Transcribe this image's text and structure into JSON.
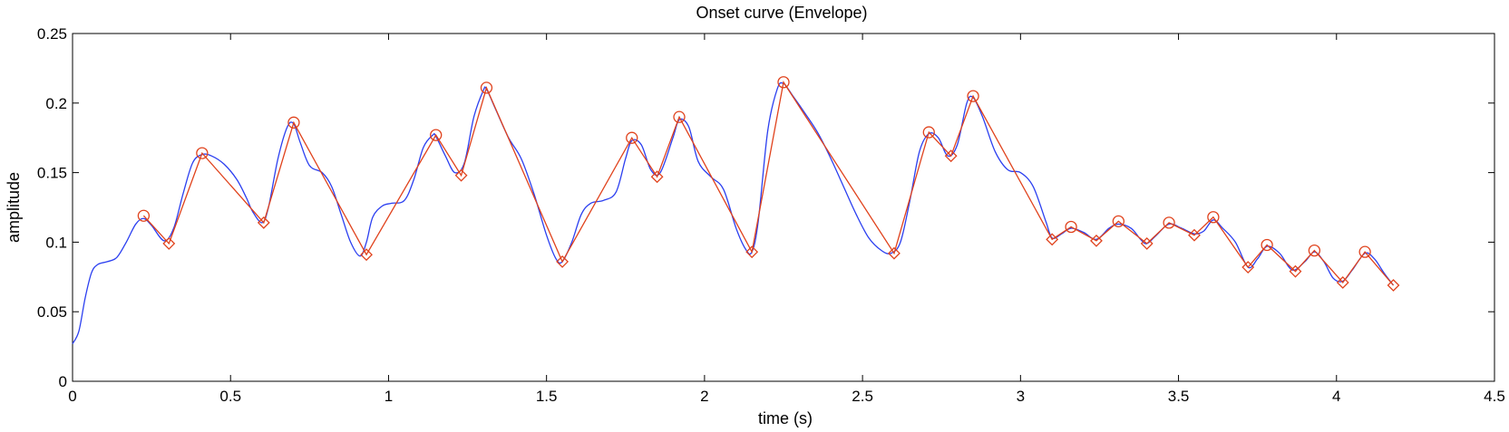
{
  "chart_data": {
    "type": "line",
    "title": "Onset curve (Envelope)",
    "xlabel": "time (s)",
    "ylabel": "amplitude",
    "xlim": [
      0,
      4.5
    ],
    "ylim": [
      0,
      0.25
    ],
    "xticks": [
      0,
      0.5,
      1,
      1.5,
      2,
      2.5,
      3,
      3.5,
      4,
      4.5
    ],
    "xtick_labels": [
      "0",
      "0.5",
      "1",
      "1.5",
      "2",
      "2.5",
      "3",
      "3.5",
      "4",
      "4.5"
    ],
    "yticks": [
      0,
      0.05,
      0.1,
      0.15,
      0.2,
      0.25
    ],
    "ytick_labels": [
      "0",
      "0.05",
      "0.1",
      "0.15",
      "0.2",
      "0.25"
    ],
    "grid": false,
    "colors": {
      "envelope": "#2b3ff0",
      "peaks": "#e0421c"
    },
    "series": [
      {
        "style": "line",
        "color": "#2b3ff0",
        "x": [
          0,
          0.02,
          0.04,
          0.06,
          0.08,
          0.11,
          0.14,
          0.17,
          0.2,
          0.225,
          0.25,
          0.29,
          0.32,
          0.35,
          0.38,
          0.41,
          0.44,
          0.48,
          0.52,
          0.55,
          0.57,
          0.6,
          0.62,
          0.65,
          0.68,
          0.7,
          0.72,
          0.75,
          0.79,
          0.82,
          0.85,
          0.88,
          0.91,
          0.93,
          0.95,
          0.98,
          1.01,
          1.05,
          1.08,
          1.11,
          1.14,
          1.15,
          1.18,
          1.21,
          1.24,
          1.27,
          1.3,
          1.31,
          1.34,
          1.38,
          1.42,
          1.46,
          1.5,
          1.53,
          1.55,
          1.58,
          1.61,
          1.64,
          1.68,
          1.72,
          1.75,
          1.77,
          1.8,
          1.83,
          1.86,
          1.9,
          1.92,
          1.95,
          1.98,
          2.02,
          2.06,
          2.1,
          2.13,
          2.15,
          2.17,
          2.2,
          2.23,
          2.25,
          2.28,
          2.32,
          2.36,
          2.4,
          2.44,
          2.48,
          2.52,
          2.56,
          2.59,
          2.62,
          2.65,
          2.68,
          2.71,
          2.74,
          2.77,
          2.8,
          2.83,
          2.85,
          2.88,
          2.92,
          2.96,
          3.0,
          3.04,
          3.08,
          3.1,
          3.13,
          3.16,
          3.2,
          3.24,
          3.28,
          3.31,
          3.35,
          3.38,
          3.4,
          3.43,
          3.47,
          3.51,
          3.55,
          3.58,
          3.61,
          3.64,
          3.68,
          3.72,
          3.75,
          3.78,
          3.82,
          3.86,
          3.9,
          3.93,
          3.96,
          3.99,
          4.02,
          4.05,
          4.09,
          4.12,
          4.15,
          4.18
        ],
        "y": [
          0.027,
          0.036,
          0.06,
          0.078,
          0.084,
          0.086,
          0.089,
          0.1,
          0.113,
          0.117,
          0.112,
          0.101,
          0.11,
          0.135,
          0.157,
          0.163,
          0.162,
          0.156,
          0.145,
          0.132,
          0.122,
          0.114,
          0.125,
          0.16,
          0.183,
          0.185,
          0.172,
          0.155,
          0.15,
          0.14,
          0.12,
          0.1,
          0.09,
          0.1,
          0.118,
          0.126,
          0.128,
          0.13,
          0.145,
          0.168,
          0.177,
          0.176,
          0.162,
          0.15,
          0.157,
          0.19,
          0.209,
          0.21,
          0.195,
          0.175,
          0.16,
          0.135,
          0.105,
          0.088,
          0.086,
          0.1,
          0.12,
          0.128,
          0.13,
          0.136,
          0.16,
          0.173,
          0.17,
          0.152,
          0.15,
          0.175,
          0.188,
          0.183,
          0.158,
          0.147,
          0.138,
          0.11,
          0.095,
          0.093,
          0.115,
          0.18,
          0.21,
          0.214,
          0.205,
          0.192,
          0.178,
          0.16,
          0.14,
          0.12,
          0.103,
          0.094,
          0.092,
          0.1,
          0.13,
          0.165,
          0.178,
          0.175,
          0.162,
          0.17,
          0.2,
          0.204,
          0.19,
          0.165,
          0.152,
          0.15,
          0.14,
          0.115,
          0.103,
          0.106,
          0.11,
          0.107,
          0.102,
          0.11,
          0.113,
          0.11,
          0.102,
          0.099,
          0.105,
          0.113,
          0.11,
          0.106,
          0.108,
          0.116,
          0.11,
          0.1,
          0.082,
          0.088,
          0.097,
          0.092,
          0.08,
          0.086,
          0.093,
          0.086,
          0.074,
          0.072,
          0.08,
          0.092,
          0.088,
          0.078,
          0.069
        ]
      },
      {
        "style": "line-with-markers",
        "color": "#e0421c",
        "markers": [
          "circle",
          "diamond"
        ],
        "x": [
          0.225,
          0.305,
          0.41,
          0.605,
          0.7,
          0.93,
          1.15,
          1.23,
          1.31,
          1.55,
          1.77,
          1.85,
          1.92,
          2.15,
          2.25,
          2.6,
          2.71,
          2.78,
          2.85,
          3.1,
          3.16,
          3.24,
          3.31,
          3.4,
          3.47,
          3.55,
          3.61,
          3.72,
          3.78,
          3.87,
          3.93,
          4.02,
          4.09,
          4.18
        ],
        "y": [
          0.119,
          0.099,
          0.164,
          0.114,
          0.186,
          0.091,
          0.177,
          0.148,
          0.211,
          0.086,
          0.175,
          0.147,
          0.19,
          0.093,
          0.215,
          0.092,
          0.179,
          0.162,
          0.205,
          0.102,
          0.111,
          0.101,
          0.115,
          0.099,
          0.114,
          0.105,
          0.118,
          0.082,
          0.098,
          0.079,
          0.094,
          0.071,
          0.093,
          0.069
        ],
        "marker_types": [
          "circle",
          "diamond",
          "circle",
          "diamond",
          "circle",
          "diamond",
          "circle",
          "diamond",
          "circle",
          "diamond",
          "circle",
          "diamond",
          "circle",
          "diamond",
          "circle",
          "diamond",
          "circle",
          "diamond",
          "circle",
          "diamond",
          "circle",
          "diamond",
          "circle",
          "diamond",
          "circle",
          "diamond",
          "circle",
          "diamond",
          "circle",
          "diamond",
          "circle",
          "diamond",
          "circle",
          "diamond"
        ]
      }
    ]
  }
}
